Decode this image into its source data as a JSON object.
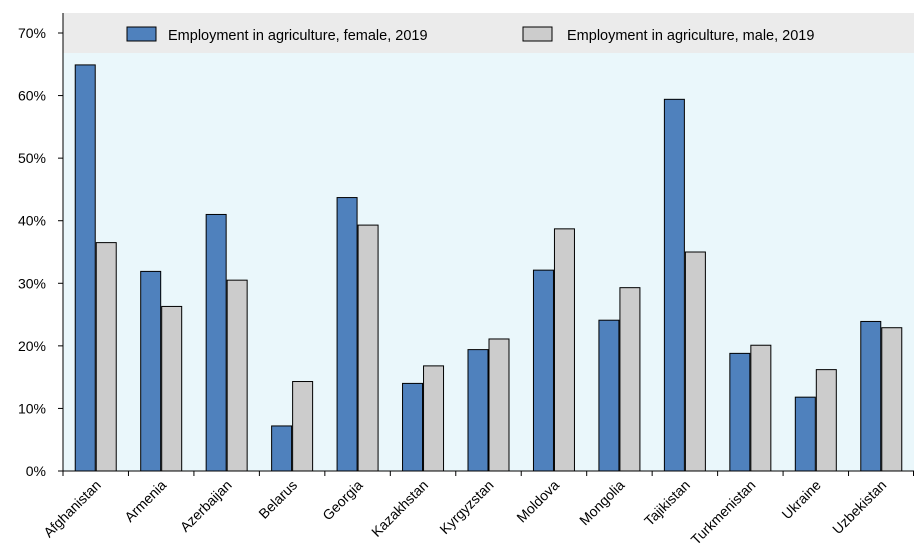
{
  "chart_data": {
    "type": "bar",
    "categories": [
      "Afghanistan",
      "Armenia",
      "Azerbaijan",
      "Belarus",
      "Georgia",
      "Kazakhstan",
      "Kyrgyzstan",
      "Moldova",
      "Mongolia",
      "Tajikistan",
      "Turkmenistan",
      "Ukraine",
      "Uzbekistan"
    ],
    "series": [
      {
        "name": "Employment in agriculture, female, 2019",
        "color": "#4f81bd",
        "values": [
          64.9,
          31.9,
          41.0,
          7.2,
          43.7,
          14.0,
          19.4,
          32.1,
          24.1,
          59.4,
          18.8,
          11.8,
          23.9
        ]
      },
      {
        "name": "Employment in agriculture, male, 2019",
        "color": "#cccccc",
        "values": [
          36.5,
          26.3,
          30.5,
          14.3,
          39.3,
          16.8,
          21.1,
          38.7,
          29.3,
          35.0,
          20.1,
          16.2,
          22.9
        ]
      }
    ],
    "ylim": [
      0,
      70
    ],
    "yticks": [
      0,
      10,
      20,
      30,
      40,
      50,
      60,
      70
    ],
    "ytick_format": "percent",
    "legend": "top",
    "plot_background": "#eaf7fb",
    "legend_background": "#ebebeb",
    "grid": false
  }
}
